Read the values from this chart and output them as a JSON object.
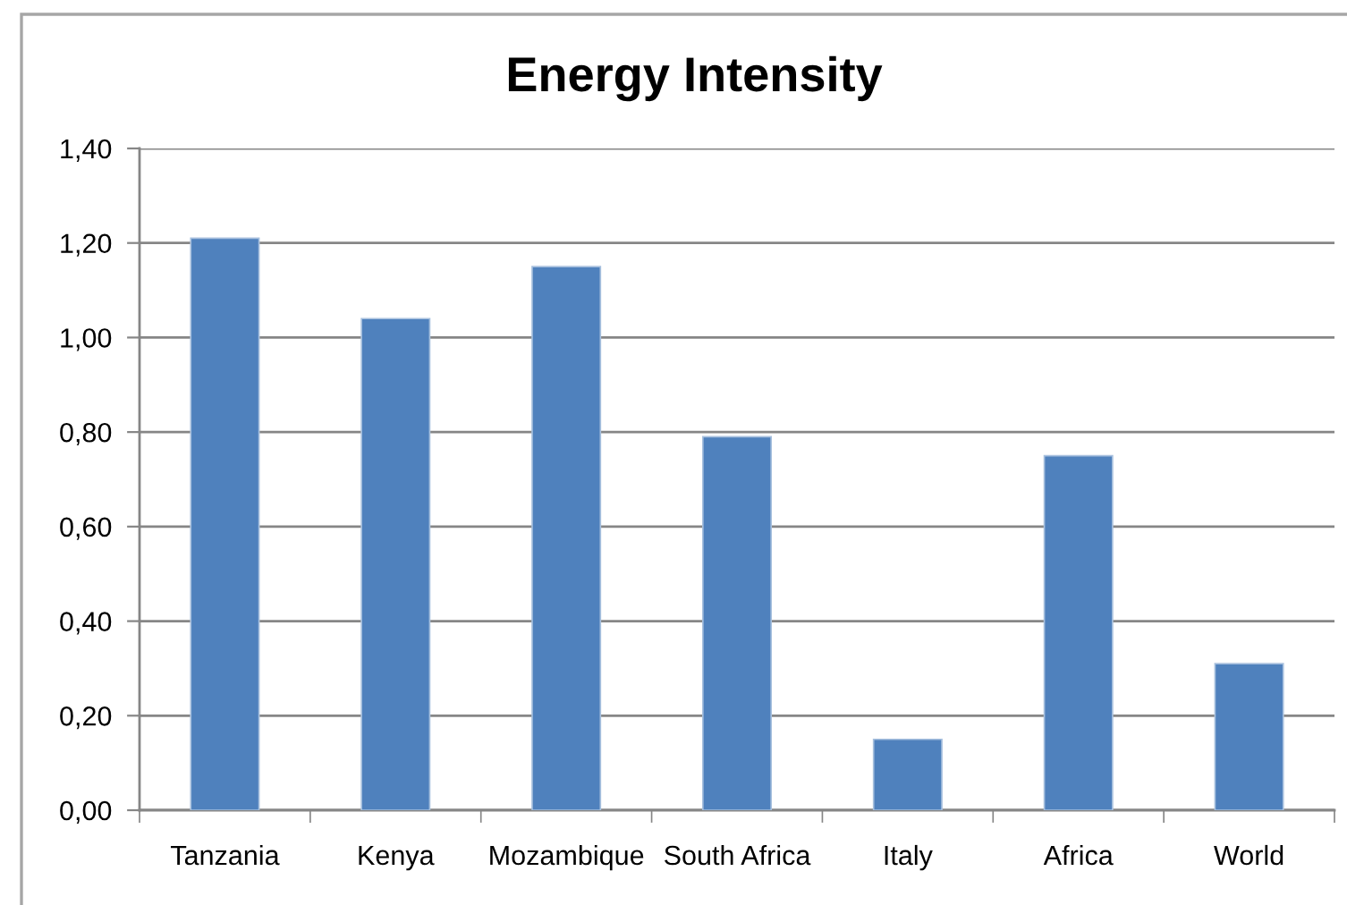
{
  "chart_data": {
    "type": "bar",
    "title": "Energy Intensity",
    "categories": [
      "Tanzania",
      "Kenya",
      "Mozambique",
      "South Africa",
      "Italy",
      "Africa",
      "World"
    ],
    "values": [
      1.21,
      1.04,
      1.15,
      0.79,
      0.15,
      0.75,
      0.31
    ],
    "color": "#4f81bd",
    "ylim": [
      0,
      1.4
    ],
    "yticks": [
      {
        "value": 0,
        "label": "0,00"
      },
      {
        "value": 0.2,
        "label": "0,20"
      },
      {
        "value": 0.4,
        "label": "0,40"
      },
      {
        "value": 0.6,
        "label": "0,60"
      },
      {
        "value": 0.8,
        "label": "0,80"
      },
      {
        "value": 1.0,
        "label": "1,00"
      },
      {
        "value": 1.2,
        "label": "1,20"
      },
      {
        "value": 1.4,
        "label": "1,40"
      }
    ],
    "grid": "y",
    "legend": false
  }
}
